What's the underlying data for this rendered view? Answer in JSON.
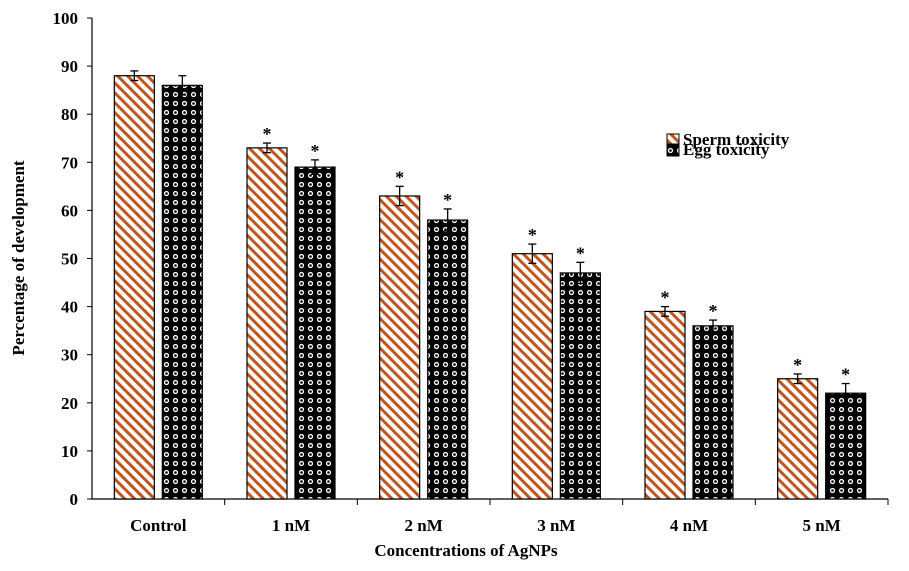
{
  "chart_data": {
    "type": "bar",
    "title": "",
    "xlabel": "Concentrations of AgNPs",
    "ylabel": "Percentage of development",
    "ylim": [
      0,
      100
    ],
    "yticks": [
      0,
      10,
      20,
      30,
      40,
      50,
      60,
      70,
      80,
      90,
      100
    ],
    "categories": [
      "Control",
      "1 nM",
      "2 nM",
      "3 nM",
      "4 nM",
      "5 nM"
    ],
    "series": [
      {
        "name": "Sperm toxicity",
        "values": [
          88,
          73,
          63,
          51,
          39,
          25
        ],
        "errors": [
          1,
          1,
          2,
          2,
          1,
          1
        ],
        "color": "#c0561e",
        "pattern": "diagonal-stripes"
      },
      {
        "name": "Egg toxicity",
        "values": [
          86,
          69,
          58,
          47,
          36,
          22
        ],
        "errors": [
          2,
          1.5,
          2.3,
          2.2,
          1.2,
          2
        ],
        "color": "#000000",
        "pattern": "dotted"
      }
    ],
    "significance_marker": "*",
    "significance": [
      [
        false,
        true,
        true,
        true,
        true,
        true
      ],
      [
        false,
        true,
        true,
        true,
        true,
        true
      ]
    ],
    "legend_position": "right",
    "grid": false
  }
}
